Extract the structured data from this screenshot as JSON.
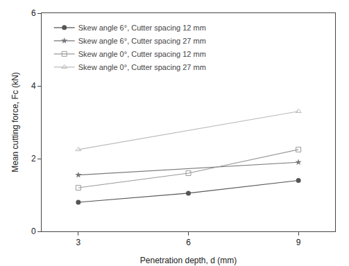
{
  "chart_data": {
    "type": "line",
    "x_label": "Penetration depth, d (mm)",
    "y_label": "Mean cutting force, Fc (kN)",
    "xlim": [
      2,
      10
    ],
    "xticks": [
      3,
      6,
      9
    ],
    "ylim": [
      0,
      6
    ],
    "yticks": [
      0,
      2,
      4,
      6
    ],
    "grid": false,
    "legend": "upper left",
    "series": [
      {
        "name": "Skew angle 6°, Cutter spacing 12 mm",
        "color": "#555555",
        "marker": "circle",
        "line_style": "solid",
        "x": [
          3,
          6,
          9
        ],
        "values": [
          0.8,
          1.05,
          1.4
        ]
      },
      {
        "name": "Skew angle 6°, Cutter spacing 27 mm",
        "color": "#777777",
        "marker": "star",
        "line_style": "solid",
        "x": [
          3,
          9
        ],
        "values": [
          1.55,
          1.9
        ]
      },
      {
        "name": "Skew angle 0°, Cutter spacing 12 mm",
        "color": "#999999",
        "marker": "square-open",
        "line_style": "solid",
        "x": [
          3,
          6,
          9
        ],
        "values": [
          1.2,
          1.6,
          2.25
        ]
      },
      {
        "name": "Skew angle 0°, Cutter spacing 27 mm",
        "color": "#bbbbbb",
        "marker": "triangle-up-open",
        "line_style": "solid",
        "x": [
          3,
          9
        ],
        "values": [
          2.25,
          3.3
        ]
      }
    ]
  }
}
